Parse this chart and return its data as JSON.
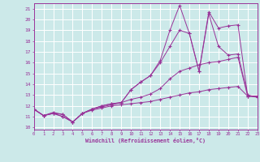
{
  "xlabel": "Windchill (Refroidissement éolien,°C)",
  "background_color": "#cce9e9",
  "line_color": "#993399",
  "grid_color": "#ffffff",
  "x_ticks": [
    0,
    1,
    2,
    3,
    4,
    5,
    6,
    7,
    8,
    9,
    10,
    11,
    12,
    13,
    14,
    15,
    16,
    17,
    18,
    19,
    20,
    21,
    22,
    23
  ],
  "y_ticks": [
    10,
    11,
    12,
    13,
    14,
    15,
    16,
    17,
    18,
    19,
    20,
    21
  ],
  "xlim": [
    0,
    23
  ],
  "ylim": [
    9.8,
    21.5
  ],
  "series": [
    {
      "x": [
        0,
        1,
        2,
        3,
        4,
        5,
        6,
        7,
        8,
        9,
        10,
        11,
        12,
        13,
        14,
        15,
        16,
        17,
        18,
        19,
        20,
        21,
        22,
        23
      ],
      "y": [
        11.7,
        11.1,
        11.4,
        11.2,
        10.5,
        11.3,
        11.6,
        11.8,
        12.0,
        12.1,
        12.2,
        12.3,
        12.4,
        12.6,
        12.8,
        13.0,
        13.2,
        13.3,
        13.5,
        13.6,
        13.7,
        13.8,
        12.9,
        12.9
      ]
    },
    {
      "x": [
        0,
        1,
        2,
        3,
        4,
        5,
        6,
        7,
        8,
        9,
        10,
        11,
        12,
        13,
        14,
        15,
        16,
        17,
        18,
        19,
        20,
        21,
        22,
        23
      ],
      "y": [
        11.7,
        11.1,
        11.3,
        11.2,
        10.5,
        11.3,
        11.7,
        11.9,
        12.1,
        12.3,
        12.6,
        12.8,
        13.1,
        13.6,
        14.5,
        15.2,
        15.5,
        15.8,
        16.0,
        16.1,
        16.3,
        16.5,
        12.9,
        12.8
      ]
    },
    {
      "x": [
        0,
        1,
        2,
        3,
        4,
        5,
        6,
        7,
        8,
        9,
        10,
        11,
        12,
        13,
        14,
        15,
        16,
        17,
        18,
        19,
        20,
        21,
        22,
        23
      ],
      "y": [
        11.7,
        11.1,
        11.3,
        11.0,
        10.5,
        11.3,
        11.7,
        12.0,
        12.2,
        12.3,
        13.5,
        14.2,
        14.8,
        16.0,
        17.5,
        19.0,
        18.7,
        15.2,
        20.5,
        17.5,
        16.7,
        16.8,
        13.0,
        12.8
      ]
    },
    {
      "x": [
        0,
        1,
        2,
        3,
        4,
        5,
        6,
        7,
        8,
        9,
        10,
        11,
        12,
        13,
        14,
        15,
        16,
        17,
        18,
        19,
        20,
        21,
        22,
        23
      ],
      "y": [
        11.7,
        11.1,
        11.3,
        11.0,
        10.5,
        11.3,
        11.7,
        12.0,
        12.2,
        12.3,
        13.5,
        14.2,
        14.8,
        16.2,
        19.0,
        21.3,
        18.7,
        15.2,
        20.7,
        19.2,
        19.4,
        19.5,
        12.9,
        12.9
      ]
    }
  ]
}
